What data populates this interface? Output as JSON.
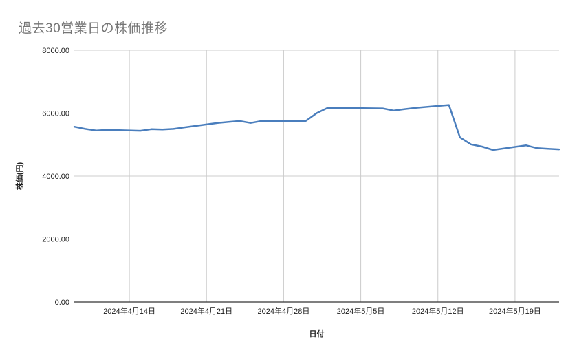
{
  "title": "過去30営業日の株価推移",
  "colors": {
    "background": "#ffffff",
    "title_text": "#757575",
    "line": "#4a7ebd",
    "gridline": "#cccccc",
    "axis_line": "#333333",
    "tick_text": "#1a1a1a",
    "axis_title_text": "#222222"
  },
  "chart_data": {
    "type": "line",
    "title": "過去30営業日の株価推移",
    "xlabel": "日付",
    "ylabel": "株価(円)",
    "ylim": [
      0,
      8000
    ],
    "grid": true,
    "legend": "none",
    "x_domain": [
      "2024-04-09",
      "2024-05-23"
    ],
    "y_ticks": [
      {
        "value": 0,
        "label": "0.00"
      },
      {
        "value": 2000,
        "label": "2000.00"
      },
      {
        "value": 4000,
        "label": "4000.00"
      },
      {
        "value": 6000,
        "label": "6000.00"
      },
      {
        "value": 8000,
        "label": "8000.00"
      }
    ],
    "x_ticks": [
      {
        "date": "2024-04-14",
        "label": "2024年4月14日"
      },
      {
        "date": "2024-04-21",
        "label": "2024年4月21日"
      },
      {
        "date": "2024-04-28",
        "label": "2024年4月28日"
      },
      {
        "date": "2024-05-05",
        "label": "2024年5月5日"
      },
      {
        "date": "2024-05-12",
        "label": "2024年5月12日"
      },
      {
        "date": "2024-05-19",
        "label": "2024年5月19日"
      }
    ],
    "series": [
      {
        "name": "株価",
        "color": "#4a7ebd",
        "points": [
          {
            "date": "2024-04-09",
            "value": 5570
          },
          {
            "date": "2024-04-10",
            "value": 5500
          },
          {
            "date": "2024-04-11",
            "value": 5450
          },
          {
            "date": "2024-04-12",
            "value": 5470
          },
          {
            "date": "2024-04-15",
            "value": 5440
          },
          {
            "date": "2024-04-16",
            "value": 5490
          },
          {
            "date": "2024-04-17",
            "value": 5480
          },
          {
            "date": "2024-04-18",
            "value": 5500
          },
          {
            "date": "2024-04-19",
            "value": 5550
          },
          {
            "date": "2024-04-22",
            "value": 5690
          },
          {
            "date": "2024-04-23",
            "value": 5720
          },
          {
            "date": "2024-04-24",
            "value": 5750
          },
          {
            "date": "2024-04-25",
            "value": 5690
          },
          {
            "date": "2024-04-26",
            "value": 5750
          },
          {
            "date": "2024-04-30",
            "value": 5750
          },
          {
            "date": "2024-05-01",
            "value": 6000
          },
          {
            "date": "2024-05-02",
            "value": 6170
          },
          {
            "date": "2024-05-07",
            "value": 6150
          },
          {
            "date": "2024-05-08",
            "value": 6080
          },
          {
            "date": "2024-05-09",
            "value": 6130
          },
          {
            "date": "2024-05-10",
            "value": 6170
          },
          {
            "date": "2024-05-13",
            "value": 6260
          },
          {
            "date": "2024-05-14",
            "value": 5230
          },
          {
            "date": "2024-05-15",
            "value": 5010
          },
          {
            "date": "2024-05-16",
            "value": 4940
          },
          {
            "date": "2024-05-17",
            "value": 4830
          },
          {
            "date": "2024-05-20",
            "value": 4980
          },
          {
            "date": "2024-05-21",
            "value": 4890
          },
          {
            "date": "2024-05-22",
            "value": 4870
          },
          {
            "date": "2024-05-23",
            "value": 4850
          }
        ]
      }
    ]
  }
}
